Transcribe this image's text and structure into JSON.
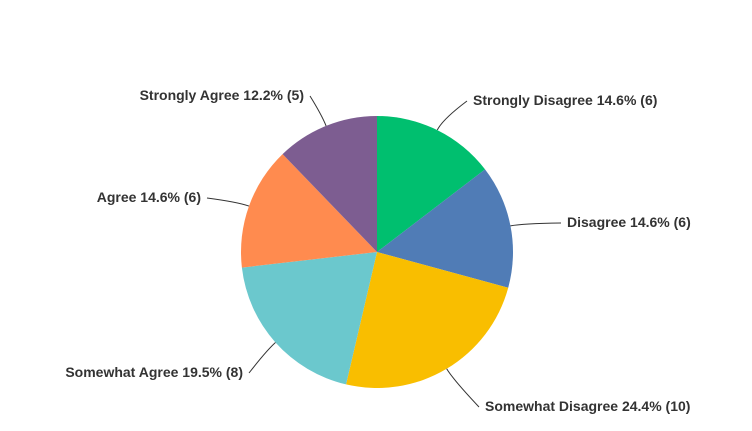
{
  "chart_data": {
    "type": "pie",
    "categories": [
      "Strongly Disagree",
      "Disagree",
      "Somewhat Disagree",
      "Somewhat Agree",
      "Agree",
      "Strongly Agree"
    ],
    "values": [
      14.6,
      14.6,
      24.4,
      19.5,
      14.6,
      12.2
    ],
    "value_labels": [
      "14.6% (6)",
      "14.6% (6)",
      "24.4% (10)",
      "19.5% (8)",
      "14.6% (6)",
      "12.2% (5)"
    ],
    "colors": [
      "#00bf6f",
      "#507cb6",
      "#f9be00",
      "#6bc8cd",
      "#ff8b4f",
      "#7d5d91"
    ]
  }
}
